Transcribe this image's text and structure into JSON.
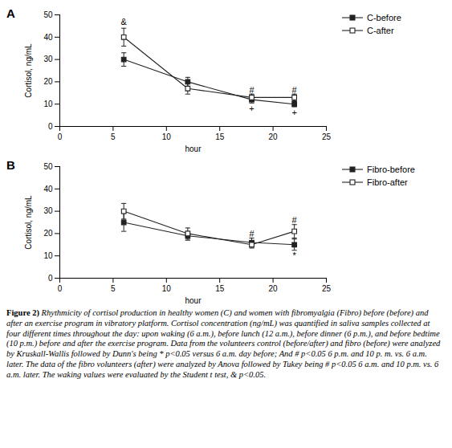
{
  "chart_data": [
    {
      "type": "line",
      "title": "A",
      "x": [
        6,
        12,
        18,
        22
      ],
      "xlabel": "hour",
      "ylabel": "Cortisol, ng/mL",
      "xlim": [
        0,
        25
      ],
      "xticks": [
        0,
        5,
        10,
        15,
        20,
        25
      ],
      "ylim": [
        0,
        50
      ],
      "yticks": [
        0,
        10,
        20,
        30,
        40,
        50
      ],
      "legend": "right",
      "series": [
        {
          "name": "C-before",
          "color": "#222222",
          "marker": "square",
          "values": [
            30,
            20,
            12,
            10
          ],
          "errors": [
            3,
            2,
            1.5,
            1.2
          ]
        },
        {
          "name": "C-after",
          "color": "#222222",
          "marker": "open-square",
          "values": [
            40,
            17,
            13,
            13
          ],
          "errors": [
            4,
            2.5,
            1.5,
            1.5
          ]
        }
      ],
      "annotations": [
        {
          "x": 6,
          "y": 45.5,
          "text": "&"
        },
        {
          "x": 18,
          "y": 15,
          "text": "#"
        },
        {
          "x": 22,
          "y": 15,
          "text": "#"
        },
        {
          "x": 18,
          "y": 9.5,
          "text": "+"
        },
        {
          "x": 22,
          "y": 7.8,
          "text": "+"
        }
      ]
    },
    {
      "type": "line",
      "title": "B",
      "x": [
        6,
        12,
        18,
        22
      ],
      "xlabel": "hour",
      "ylabel": "Cortisol, ng/mL",
      "xlim": [
        0,
        25
      ],
      "xticks": [
        0,
        5,
        10,
        15,
        20,
        25
      ],
      "ylim": [
        0,
        50
      ],
      "yticks": [
        0,
        10,
        20,
        30,
        40,
        50
      ],
      "legend": "right",
      "series": [
        {
          "name": "Fibro-before",
          "color": "#222222",
          "marker": "square",
          "values": [
            25,
            19,
            16,
            15
          ],
          "errors": [
            4,
            2,
            2,
            2.5
          ]
        },
        {
          "name": "Fibro-after",
          "color": "#222222",
          "marker": "open-square",
          "values": [
            30,
            20,
            15,
            21
          ],
          "errors": [
            3.5,
            2.5,
            1.5,
            3
          ]
        }
      ],
      "annotations": [
        {
          "x": 18,
          "y": 18.5,
          "text": "#"
        },
        {
          "x": 22,
          "y": 24.5,
          "text": "#"
        },
        {
          "x": 22,
          "y": 11.5,
          "text": "*"
        }
      ]
    }
  ],
  "caption_label": "Figure 2)",
  "caption": "Rhythmicity of cortisol production in healthy women (C) and women with fibromyalgia (Fibro) before (before) and after an exercise program in vibratory platform. Cortisol concentration (ng/mL) was quantified in saliva samples collected at four different times throughout the day: upon waking (6 a.m.), before lunch (12 a.m.), before dinner (6 p.m.), and before bedtime (10 p.m.) before and after the exercise program. Data from the volunteers control (before/after) and fibro (before) were analyzed by Kruskall-Wallis followed by Dunn's being * p<0.05 versus 6 a.m. day before; And # p<0.05 6 p.m. and 10 p. m. vs. 6 a.m. later. The data of the fibro volunteers (after) were analyzed by Anova followed by Tukey being # p<0.05 6 a.m. and 10 p.m. vs. 6 a.m. later. The waking values were evaluated by the Student t test, & p<0.05."
}
